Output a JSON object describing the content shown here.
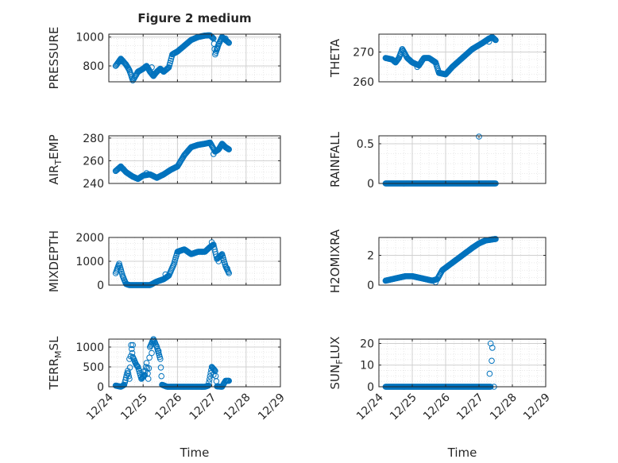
{
  "figure": {
    "title": "Figure 2 medium",
    "marker_color": "#0072BD"
  },
  "chart_data": [
    {
      "type": "scatter",
      "name": "pressure",
      "ylabel": "PRESSURE",
      "xlim": [
        0,
        5
      ],
      "ylim": [
        690,
        1020
      ],
      "yticks": [
        800,
        1000
      ],
      "yticklabels": [
        "800",
        "1000"
      ],
      "xticks": [
        0,
        1,
        2,
        3,
        4,
        5
      ],
      "show_xticklabels": false,
      "xlabel": "",
      "anchors": [
        [
          0.2,
          800
        ],
        [
          0.35,
          850
        ],
        [
          0.5,
          810
        ],
        [
          0.6,
          770
        ],
        [
          0.7,
          700
        ],
        [
          0.85,
          760
        ],
        [
          1.0,
          780
        ],
        [
          1.1,
          800
        ],
        [
          1.2,
          760
        ],
        [
          1.3,
          730
        ],
        [
          1.4,
          760
        ],
        [
          1.5,
          780
        ],
        [
          1.6,
          760
        ],
        [
          1.75,
          790
        ],
        [
          1.85,
          880
        ],
        [
          2.0,
          900
        ],
        [
          2.2,
          940
        ],
        [
          2.4,
          980
        ],
        [
          2.6,
          1000
        ],
        [
          2.8,
          1010
        ],
        [
          2.95,
          1012
        ],
        [
          3.05,
          990
        ],
        [
          3.1,
          880
        ],
        [
          3.2,
          950
        ],
        [
          3.3,
          1000
        ],
        [
          3.4,
          980
        ],
        [
          3.5,
          960
        ]
      ],
      "scatter": [
        [
          0.35,
          830
        ],
        [
          1.25,
          790
        ],
        [
          3.15,
          920
        ],
        [
          3.4,
          990
        ]
      ]
    },
    {
      "type": "scatter",
      "name": "theta",
      "ylabel": "THETA",
      "xlim": [
        0,
        5
      ],
      "ylim": [
        260,
        276
      ],
      "yticks": [
        260,
        270
      ],
      "yticklabels": [
        "260",
        "270"
      ],
      "xticks": [
        0,
        1,
        2,
        3,
        4,
        5
      ],
      "show_xticklabels": false,
      "xlabel": "",
      "anchors": [
        [
          0.2,
          268
        ],
        [
          0.4,
          267.5
        ],
        [
          0.5,
          266.5
        ],
        [
          0.6,
          268
        ],
        [
          0.7,
          271
        ],
        [
          0.85,
          268
        ],
        [
          1.0,
          266.5
        ],
        [
          1.2,
          265.5
        ],
        [
          1.35,
          268
        ],
        [
          1.5,
          268
        ],
        [
          1.7,
          266.5
        ],
        [
          1.8,
          263
        ],
        [
          2.0,
          262.5
        ],
        [
          2.2,
          265
        ],
        [
          2.5,
          268
        ],
        [
          2.8,
          271
        ],
        [
          3.1,
          273
        ],
        [
          3.3,
          274.5
        ],
        [
          3.4,
          275
        ],
        [
          3.5,
          274
        ]
      ],
      "scatter": [
        [
          1.15,
          265
        ],
        [
          3.3,
          273.5
        ]
      ]
    },
    {
      "type": "scatter",
      "name": "air-temp",
      "ylabel": "AIR_TEMP",
      "xlim": [
        0,
        5
      ],
      "ylim": [
        240,
        282
      ],
      "yticks": [
        240,
        260,
        280
      ],
      "yticklabels": [
        "240",
        "260",
        "280"
      ],
      "xticks": [
        0,
        1,
        2,
        3,
        4,
        5
      ],
      "show_xticklabels": false,
      "xlabel": "",
      "anchors": [
        [
          0.2,
          251
        ],
        [
          0.35,
          255
        ],
        [
          0.5,
          250
        ],
        [
          0.7,
          246
        ],
        [
          0.85,
          244
        ],
        [
          1.0,
          247
        ],
        [
          1.2,
          248
        ],
        [
          1.4,
          245
        ],
        [
          1.6,
          248
        ],
        [
          1.8,
          252
        ],
        [
          2.0,
          255
        ],
        [
          2.2,
          265
        ],
        [
          2.4,
          272
        ],
        [
          2.6,
          274
        ],
        [
          2.8,
          275
        ],
        [
          2.95,
          276
        ],
        [
          3.1,
          268
        ],
        [
          3.2,
          270
        ],
        [
          3.3,
          275
        ],
        [
          3.4,
          272
        ],
        [
          3.5,
          270
        ]
      ],
      "scatter": [
        [
          0.4,
          253
        ],
        [
          1.1,
          249
        ],
        [
          3.05,
          266
        ]
      ]
    },
    {
      "type": "scatter",
      "name": "rainfall",
      "ylabel": "RAINFALL",
      "xlim": [
        0,
        5
      ],
      "ylim": [
        0,
        0.6
      ],
      "yticks": [
        0,
        0.5
      ],
      "yticklabels": [
        "0",
        "0.5"
      ],
      "xticks": [
        0,
        1,
        2,
        3,
        4,
        5
      ],
      "show_xticklabels": false,
      "xlabel": "",
      "anchors": [
        [
          0.2,
          0
        ],
        [
          3.5,
          0
        ]
      ],
      "scatter": [
        [
          3.0,
          0.59
        ]
      ]
    },
    {
      "type": "scatter",
      "name": "mixdepth",
      "ylabel": "MIXDEPTH",
      "xlim": [
        0,
        5
      ],
      "ylim": [
        0,
        2000
      ],
      "yticks": [
        0,
        1000,
        2000
      ],
      "yticklabels": [
        "0",
        "1000",
        "2000"
      ],
      "xticks": [
        0,
        1,
        2,
        3,
        4,
        5
      ],
      "show_xticklabels": false,
      "xlabel": "",
      "anchors": [
        [
          0.2,
          500
        ],
        [
          0.3,
          900
        ],
        [
          0.4,
          400
        ],
        [
          0.5,
          50
        ],
        [
          0.6,
          0
        ],
        [
          0.8,
          0
        ],
        [
          1.0,
          0
        ],
        [
          1.2,
          0
        ],
        [
          1.4,
          150
        ],
        [
          1.6,
          250
        ],
        [
          1.75,
          400
        ],
        [
          1.9,
          900
        ],
        [
          2.0,
          1400
        ],
        [
          2.2,
          1500
        ],
        [
          2.4,
          1300
        ],
        [
          2.6,
          1400
        ],
        [
          2.8,
          1400
        ],
        [
          2.95,
          1600
        ],
        [
          3.05,
          1700
        ],
        [
          3.15,
          1100
        ],
        [
          3.3,
          1300
        ],
        [
          3.4,
          800
        ],
        [
          3.5,
          500
        ]
      ],
      "scatter": [
        [
          0.25,
          700
        ],
        [
          0.35,
          650
        ],
        [
          1.65,
          450
        ],
        [
          3.0,
          1800
        ],
        [
          3.2,
          1000
        ],
        [
          3.45,
          700
        ]
      ]
    },
    {
      "type": "scatter",
      "name": "h2omixra",
      "ylabel": "H2OMIXRA",
      "xlim": [
        0,
        5
      ],
      "ylim": [
        0,
        3.2
      ],
      "yticks": [
        0,
        2
      ],
      "yticklabels": [
        "0",
        "2"
      ],
      "xticks": [
        0,
        1,
        2,
        3,
        4,
        5
      ],
      "show_xticklabels": false,
      "xlabel": "",
      "anchors": [
        [
          0.2,
          0.3
        ],
        [
          0.4,
          0.4
        ],
        [
          0.6,
          0.5
        ],
        [
          0.8,
          0.6
        ],
        [
          1.0,
          0.6
        ],
        [
          1.2,
          0.5
        ],
        [
          1.4,
          0.4
        ],
        [
          1.6,
          0.3
        ],
        [
          1.75,
          0.4
        ],
        [
          1.9,
          1.0
        ],
        [
          2.2,
          1.5
        ],
        [
          2.5,
          2.0
        ],
        [
          2.8,
          2.5
        ],
        [
          3.0,
          2.8
        ],
        [
          3.2,
          3.0
        ],
        [
          3.5,
          3.1
        ]
      ],
      "scatter": [
        [
          1.7,
          0.2
        ],
        [
          3.1,
          2.9
        ]
      ]
    },
    {
      "type": "scatter",
      "name": "terr-msl",
      "ylabel": "TERR_MSL",
      "xlim": [
        0,
        5
      ],
      "ylim": [
        0,
        1200
      ],
      "yticks": [
        0,
        500,
        1000
      ],
      "yticklabels": [
        "0",
        "500",
        "1000"
      ],
      "xticks": [
        0,
        1,
        2,
        3,
        4,
        5
      ],
      "show_xticklabels": [
        "12/24",
        "12/25",
        "12/26",
        "12/27",
        "12/28",
        "12/29"
      ],
      "xlabel": "Time",
      "anchors": [
        [
          0.2,
          30
        ],
        [
          0.35,
          0
        ],
        [
          0.45,
          50
        ],
        [
          0.55,
          400
        ],
        [
          0.6,
          200
        ],
        [
          0.65,
          1050
        ],
        [
          0.7,
          750
        ],
        [
          0.8,
          550
        ],
        [
          0.85,
          500
        ],
        [
          0.95,
          200
        ],
        [
          1.05,
          300
        ],
        [
          1.1,
          600
        ],
        [
          1.15,
          200
        ],
        [
          1.2,
          1000
        ],
        [
          1.3,
          1200
        ],
        [
          1.4,
          1000
        ],
        [
          1.5,
          700
        ],
        [
          1.55,
          50
        ],
        [
          1.7,
          0
        ],
        [
          2.0,
          0
        ],
        [
          2.4,
          0
        ],
        [
          2.8,
          0
        ],
        [
          2.9,
          30
        ],
        [
          3.0,
          500
        ],
        [
          3.1,
          400
        ],
        [
          3.15,
          10
        ],
        [
          3.3,
          0
        ],
        [
          3.4,
          150
        ],
        [
          3.5,
          150
        ]
      ],
      "scatter": [
        [
          0.6,
          700
        ],
        [
          0.7,
          1050
        ],
        [
          1.25,
          850
        ],
        [
          1.35,
          1100
        ],
        [
          1.45,
          900
        ],
        [
          1.0,
          380
        ],
        [
          3.05,
          300
        ]
      ]
    },
    {
      "type": "scatter",
      "name": "sun-flux",
      "ylabel": "SUN_FLUX",
      "xlim": [
        0,
        5
      ],
      "ylim": [
        0,
        22
      ],
      "yticks": [
        0,
        10,
        20
      ],
      "yticklabels": [
        "0",
        "10",
        "20"
      ],
      "xticks": [
        0,
        1,
        2,
        3,
        4,
        5
      ],
      "show_xticklabels": [
        "12/24",
        "12/25",
        "12/26",
        "12/27",
        "12/28",
        "12/29"
      ],
      "xlabel": "Time",
      "anchors": [
        [
          0.2,
          0
        ],
        [
          3.35,
          0
        ]
      ],
      "scatter": [
        [
          3.35,
          20
        ],
        [
          3.4,
          18
        ],
        [
          3.38,
          12
        ],
        [
          3.32,
          6
        ],
        [
          3.45,
          0
        ]
      ]
    }
  ]
}
